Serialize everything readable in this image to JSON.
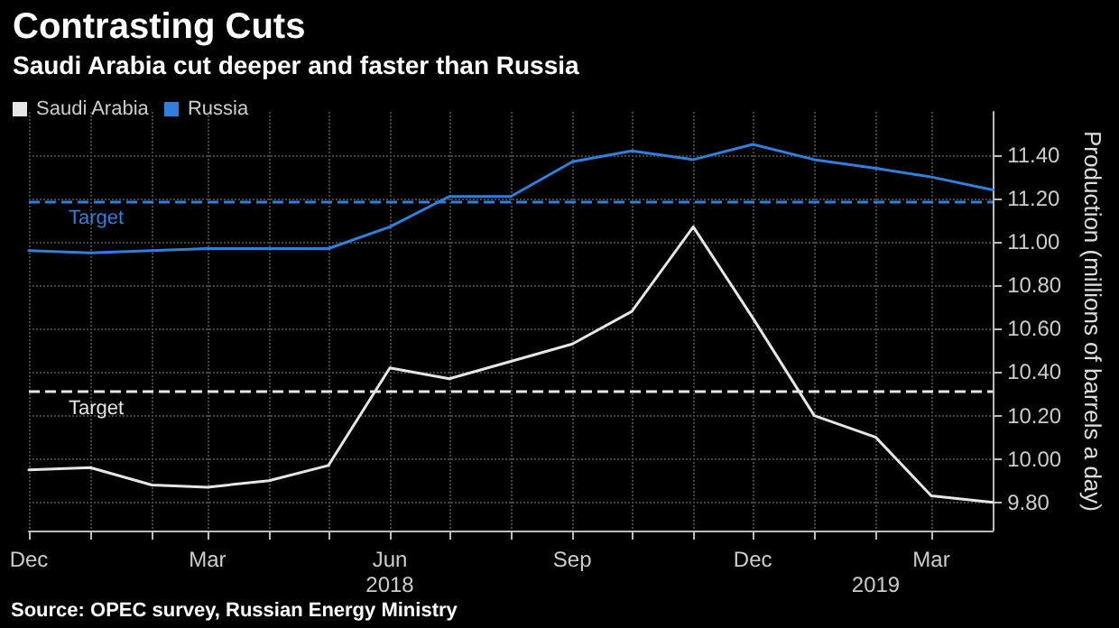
{
  "chart_data": {
    "type": "line",
    "title": "Contrasting Cuts",
    "subtitle": "Saudi Arabia cut deeper and faster than Russia",
    "ylabel": "Production (millions of barrels a day)",
    "x": [
      "2017-12",
      "2018-01",
      "2018-02",
      "2018-03",
      "2018-04",
      "2018-05",
      "2018-06",
      "2018-07",
      "2018-08",
      "2018-09",
      "2018-10",
      "2018-11",
      "2018-12",
      "2019-01",
      "2019-02",
      "2019-03",
      "2019-04"
    ],
    "series": [
      {
        "name": "Saudi Arabia",
        "color": "#e6e6e6",
        "values": [
          9.95,
          9.96,
          9.88,
          9.87,
          9.9,
          9.97,
          10.42,
          10.37,
          10.45,
          10.53,
          10.68,
          11.07,
          10.65,
          10.2,
          10.1,
          9.83,
          9.8
        ]
      },
      {
        "name": "Russia",
        "color": "#2f7fdc",
        "values": [
          10.96,
          10.95,
          10.96,
          10.97,
          10.97,
          10.97,
          11.07,
          11.21,
          11.21,
          11.37,
          11.42,
          11.38,
          11.45,
          11.38,
          11.34,
          11.3,
          11.24
        ]
      }
    ],
    "xlim": [
      "2017-12",
      "2019-04"
    ],
    "xticks": [
      {
        "value": "2017-12",
        "label": "Dec"
      },
      {
        "value": "2018-01",
        "label": null
      },
      {
        "value": "2018-02",
        "label": null
      },
      {
        "value": "2018-03",
        "label": "Mar"
      },
      {
        "value": "2018-04",
        "label": null
      },
      {
        "value": "2018-05",
        "label": null
      },
      {
        "value": "2018-06",
        "label": "Jun"
      },
      {
        "value": "2018-07",
        "label": null
      },
      {
        "value": "2018-08",
        "label": null
      },
      {
        "value": "2018-09",
        "label": "Sep"
      },
      {
        "value": "2018-10",
        "label": null
      },
      {
        "value": "2018-11",
        "label": null
      },
      {
        "value": "2018-12",
        "label": "Dec"
      },
      {
        "value": "2019-01",
        "label": null
      },
      {
        "value": "2019-02",
        "label": null
      },
      {
        "value": "2019-03",
        "label": "Mar"
      }
    ],
    "x2lim": [
      "2017-12",
      "2019-04"
    ],
    "x2ticks": [
      {
        "value": "2018-06",
        "label": "2018"
      },
      {
        "value": "2019-02",
        "label": "2019"
      }
    ],
    "ylim": [
      9.67,
      11.6
    ],
    "yticks": [
      {
        "value": 9.8,
        "label": "9.80"
      },
      {
        "value": 10,
        "label": "10.00"
      },
      {
        "value": 10.2,
        "label": "10.20"
      },
      {
        "value": 10.4,
        "label": "10.40"
      },
      {
        "value": 10.6,
        "label": "10.60"
      },
      {
        "value": 10.8,
        "label": "10.80"
      },
      {
        "value": 11,
        "label": "11.00"
      },
      {
        "value": 11.2,
        "label": "11.20"
      },
      {
        "value": 11.4,
        "label": "11.40"
      }
    ],
    "ref_lines": [
      {
        "axis": "y",
        "value": 11.19,
        "label": "Target",
        "color": "#2f7fdc",
        "line_style": "dashed"
      },
      {
        "axis": "y",
        "value": 10.31,
        "label": "Target",
        "color": "#e6e6e6",
        "line_style": "dashed"
      }
    ],
    "annotations": [
      "Source: OPEC survey, Russian Energy Ministry"
    ],
    "grid": true,
    "legend": "top left",
    "marker": "none",
    "line_style": "solid"
  }
}
